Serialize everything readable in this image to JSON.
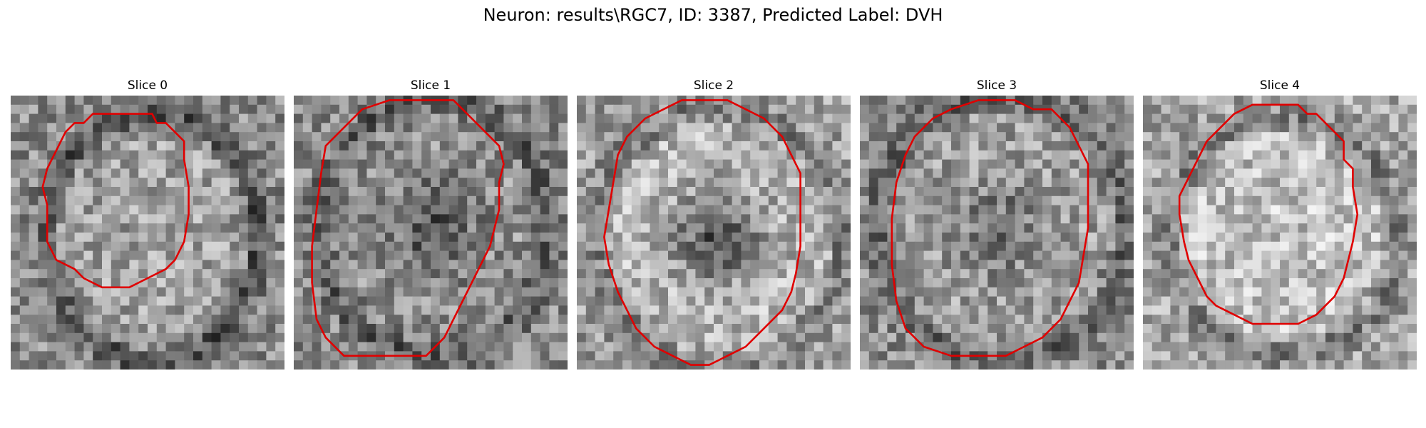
{
  "figure": {
    "title": "Neuron: results\\RGC7, ID: 3387, Predicted Label: DVH",
    "panels": [
      {
        "title": "Slice 0"
      },
      {
        "title": "Slice 1"
      },
      {
        "title": "Slice 2"
      },
      {
        "title": "Slice 3"
      },
      {
        "title": "Slice 4"
      }
    ]
  },
  "colors": {
    "contour": "#e00000",
    "image_dark": "#111111",
    "image_light": "#f2f2f2"
  }
}
